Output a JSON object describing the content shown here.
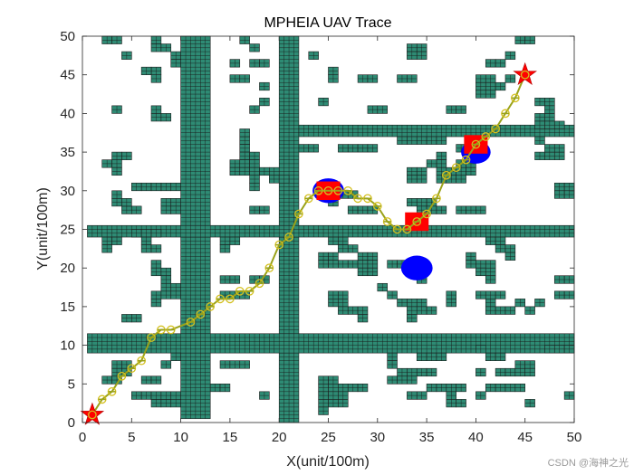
{
  "chart_data": {
    "type": "scatter",
    "title": "MPHEIA UAV Trace",
    "xlabel": "X(unit/100m)",
    "ylabel": "Y(unit/100m)",
    "xlim": [
      0,
      50
    ],
    "ylim": [
      0,
      50
    ],
    "xticks": [
      0,
      5,
      10,
      15,
      20,
      25,
      30,
      35,
      40,
      45,
      50
    ],
    "yticks": [
      0,
      5,
      10,
      15,
      20,
      25,
      30,
      35,
      40,
      45,
      50
    ],
    "grid": false,
    "colors": {
      "obstacle": "#2e8b74",
      "obstacle_edge": "#1a1a1a",
      "path": "#9aa21a",
      "waypoint": "#d4c020",
      "endpoint": "#ff0000",
      "threat_circle": "#0000ff",
      "threat_square": "#ff0000"
    },
    "obstacle_bands": [
      {
        "x": [
          10,
          13
        ],
        "y": [
          0.5,
          50
        ]
      },
      {
        "x": [
          20,
          22
        ],
        "y": [
          0,
          50
        ]
      },
      {
        "x": [
          0.5,
          50
        ],
        "y": [
          24,
          25.5
        ]
      },
      {
        "x": [
          0.5,
          50
        ],
        "y": [
          9,
          11.5
        ]
      },
      {
        "x": [
          22,
          50
        ],
        "y": [
          37,
          38.5
        ]
      }
    ],
    "obstacle_cells": [
      [
        2,
        49
      ],
      [
        3,
        49
      ],
      [
        7,
        49
      ],
      [
        7,
        48
      ],
      [
        8,
        48
      ],
      [
        4,
        47
      ],
      [
        9,
        47
      ],
      [
        9,
        46
      ],
      [
        16,
        49
      ],
      [
        17,
        48
      ],
      [
        15,
        46
      ],
      [
        17,
        46
      ],
      [
        18,
        46
      ],
      [
        23,
        47
      ],
      [
        33,
        48
      ],
      [
        34,
        48
      ],
      [
        33,
        47
      ],
      [
        34,
        47
      ],
      [
        44,
        49
      ],
      [
        45,
        49
      ],
      [
        43,
        47
      ],
      [
        41,
        46
      ],
      [
        42,
        46
      ],
      [
        7,
        44
      ],
      [
        7,
        45
      ],
      [
        6,
        45
      ],
      [
        15,
        44
      ],
      [
        16,
        44
      ],
      [
        18,
        43
      ],
      [
        28,
        44
      ],
      [
        29,
        44
      ],
      [
        25,
        44
      ],
      [
        25,
        45
      ],
      [
        32,
        44
      ],
      [
        33,
        44
      ],
      [
        40,
        44
      ],
      [
        41,
        44
      ],
      [
        40,
        43
      ],
      [
        41,
        43
      ],
      [
        42,
        43
      ],
      [
        40,
        42
      ],
      [
        41,
        42
      ],
      [
        43,
        44
      ],
      [
        3,
        40
      ],
      [
        7,
        40
      ],
      [
        7,
        39
      ],
      [
        8,
        39
      ],
      [
        17,
        40
      ],
      [
        18,
        41
      ],
      [
        24,
        41
      ],
      [
        29,
        40
      ],
      [
        30,
        40
      ],
      [
        37,
        40
      ],
      [
        38,
        40
      ],
      [
        46,
        41
      ],
      [
        47,
        41
      ],
      [
        47,
        40
      ],
      [
        46,
        39
      ],
      [
        47,
        39
      ],
      [
        46,
        38
      ],
      [
        47,
        38
      ],
      [
        48,
        38
      ],
      [
        16,
        36
      ],
      [
        16,
        37
      ],
      [
        16,
        35
      ],
      [
        16,
        34
      ],
      [
        17,
        34
      ],
      [
        15,
        33
      ],
      [
        16,
        33
      ],
      [
        17,
        33
      ],
      [
        15,
        32
      ],
      [
        16,
        32
      ],
      [
        17,
        32
      ],
      [
        2,
        33
      ],
      [
        3,
        33
      ],
      [
        3,
        32
      ],
      [
        3,
        34
      ],
      [
        4,
        34
      ],
      [
        18,
        32
      ],
      [
        19,
        32
      ],
      [
        19,
        31
      ],
      [
        20,
        31
      ],
      [
        17,
        30
      ],
      [
        17,
        31
      ],
      [
        22,
        35
      ],
      [
        23,
        35
      ],
      [
        26,
        35
      ],
      [
        27,
        35
      ],
      [
        28,
        35
      ],
      [
        29,
        35
      ],
      [
        32,
        36
      ],
      [
        33,
        36
      ],
      [
        34,
        36
      ],
      [
        35,
        36
      ],
      [
        36,
        36
      ],
      [
        38,
        35
      ],
      [
        39,
        35
      ],
      [
        39,
        34
      ],
      [
        46,
        34
      ],
      [
        47,
        34
      ],
      [
        48,
        34
      ],
      [
        47,
        35
      ],
      [
        48,
        35
      ],
      [
        46,
        36
      ],
      [
        36,
        34
      ],
      [
        36,
        33
      ],
      [
        35,
        33
      ],
      [
        36,
        32
      ],
      [
        37,
        32
      ],
      [
        33,
        32
      ],
      [
        34,
        32
      ],
      [
        33,
        31
      ],
      [
        34,
        31
      ],
      [
        36,
        31
      ],
      [
        37,
        31
      ],
      [
        38,
        31
      ],
      [
        38,
        32
      ],
      [
        38,
        33
      ],
      [
        39,
        33
      ],
      [
        39,
        32
      ],
      [
        3,
        29
      ],
      [
        3,
        28
      ],
      [
        4,
        27
      ],
      [
        5,
        27
      ],
      [
        4,
        28
      ],
      [
        8,
        30
      ],
      [
        9,
        30
      ],
      [
        5,
        30
      ],
      [
        6,
        30
      ],
      [
        7,
        30
      ],
      [
        8,
        28
      ],
      [
        9,
        28
      ],
      [
        8,
        27
      ],
      [
        9,
        27
      ],
      [
        17,
        27
      ],
      [
        18,
        27
      ],
      [
        26,
        29
      ],
      [
        27,
        29
      ],
      [
        25,
        28
      ],
      [
        27,
        27
      ],
      [
        28,
        27
      ],
      [
        29,
        27
      ],
      [
        33,
        28
      ],
      [
        34,
        28
      ],
      [
        35,
        28
      ],
      [
        34,
        27
      ],
      [
        35,
        27
      ],
      [
        36,
        27
      ],
      [
        38,
        27
      ],
      [
        39,
        27
      ],
      [
        40,
        27
      ],
      [
        48,
        30
      ],
      [
        49,
        30
      ],
      [
        48,
        29
      ],
      [
        49,
        29
      ],
      [
        5,
        24
      ],
      [
        6,
        24
      ],
      [
        7,
        24
      ],
      [
        2,
        23
      ],
      [
        3,
        23
      ],
      [
        2,
        22
      ],
      [
        6,
        22
      ],
      [
        7,
        22
      ],
      [
        6,
        23
      ],
      [
        14,
        23
      ],
      [
        15,
        23
      ],
      [
        14,
        22
      ],
      [
        25,
        23
      ],
      [
        26,
        23
      ],
      [
        26,
        22
      ],
      [
        27,
        22
      ],
      [
        41,
        23
      ],
      [
        42,
        23
      ],
      [
        42,
        22
      ],
      [
        43,
        22
      ],
      [
        43,
        21
      ],
      [
        24,
        21
      ],
      [
        25,
        21
      ],
      [
        24,
        20
      ],
      [
        25,
        20
      ],
      [
        26,
        20
      ],
      [
        27,
        20
      ],
      [
        28,
        21
      ],
      [
        29,
        21
      ],
      [
        28,
        20
      ],
      [
        29,
        20
      ],
      [
        28,
        19
      ],
      [
        29,
        19
      ],
      [
        31,
        20
      ],
      [
        32,
        20
      ],
      [
        33,
        20
      ],
      [
        34,
        19
      ],
      [
        34,
        18
      ],
      [
        39,
        21
      ],
      [
        39,
        20
      ],
      [
        40,
        20
      ],
      [
        40,
        19
      ],
      [
        41,
        19
      ],
      [
        41,
        20
      ],
      [
        41,
        18
      ],
      [
        48,
        18
      ],
      [
        49,
        18
      ],
      [
        7,
        20
      ],
      [
        7,
        19
      ],
      [
        8,
        19
      ],
      [
        8,
        18
      ],
      [
        8,
        17
      ],
      [
        9,
        17
      ],
      [
        7,
        16
      ],
      [
        8,
        16
      ],
      [
        9,
        16
      ],
      [
        7,
        15
      ],
      [
        14,
        18
      ],
      [
        15,
        18
      ],
      [
        17,
        18
      ],
      [
        18,
        18
      ],
      [
        14,
        16
      ],
      [
        15,
        16
      ],
      [
        16,
        16
      ],
      [
        25,
        16
      ],
      [
        26,
        16
      ],
      [
        25,
        15
      ],
      [
        26,
        15
      ],
      [
        26,
        14
      ],
      [
        27,
        14
      ],
      [
        28,
        14
      ],
      [
        28,
        13
      ],
      [
        30,
        17
      ],
      [
        31,
        16
      ],
      [
        32,
        15
      ],
      [
        33,
        15
      ],
      [
        34,
        15
      ],
      [
        33,
        14
      ],
      [
        34,
        14
      ],
      [
        35,
        14
      ],
      [
        37,
        16
      ],
      [
        37,
        15
      ],
      [
        40,
        16
      ],
      [
        41,
        16
      ],
      [
        42,
        16
      ],
      [
        41,
        15
      ],
      [
        44,
        15
      ],
      [
        45,
        14
      ],
      [
        46,
        15
      ],
      [
        41,
        14
      ],
      [
        42,
        14
      ],
      [
        43,
        14
      ],
      [
        48,
        16
      ],
      [
        49,
        16
      ],
      [
        33,
        13
      ],
      [
        4,
        13
      ],
      [
        5,
        13
      ],
      [
        3,
        7
      ],
      [
        4,
        7
      ],
      [
        3,
        6
      ],
      [
        4,
        6
      ],
      [
        8,
        7
      ],
      [
        9,
        8
      ],
      [
        14,
        7
      ],
      [
        15,
        7
      ],
      [
        16,
        7
      ],
      [
        2,
        5
      ],
      [
        3,
        5
      ],
      [
        6,
        5
      ],
      [
        7,
        5
      ],
      [
        5,
        3
      ],
      [
        6,
        3
      ],
      [
        7,
        2
      ],
      [
        8,
        2
      ],
      [
        7,
        3
      ],
      [
        8,
        3
      ],
      [
        9,
        3
      ],
      [
        9,
        2
      ],
      [
        13,
        4
      ],
      [
        14,
        4
      ],
      [
        18,
        3
      ],
      [
        24,
        5
      ],
      [
        25,
        5
      ],
      [
        24,
        4
      ],
      [
        25,
        4
      ],
      [
        26,
        4
      ],
      [
        27,
        4
      ],
      [
        28,
        4
      ],
      [
        24,
        3
      ],
      [
        25,
        3
      ],
      [
        26,
        3
      ],
      [
        24,
        2
      ],
      [
        25,
        2
      ],
      [
        26,
        2
      ],
      [
        24,
        1
      ],
      [
        31,
        8
      ],
      [
        31,
        7
      ],
      [
        32,
        6
      ],
      [
        33,
        6
      ],
      [
        34,
        6
      ],
      [
        35,
        6
      ],
      [
        31,
        5
      ],
      [
        32,
        5
      ],
      [
        33,
        5
      ],
      [
        35,
        4
      ],
      [
        36,
        4
      ],
      [
        37,
        4
      ],
      [
        38,
        4
      ],
      [
        37,
        3
      ],
      [
        34,
        8
      ],
      [
        35,
        8
      ],
      [
        36,
        8
      ],
      [
        40,
        9
      ],
      [
        41,
        8
      ],
      [
        42,
        8
      ],
      [
        40,
        6
      ],
      [
        42,
        6
      ],
      [
        43,
        6
      ],
      [
        44,
        6
      ],
      [
        44,
        7
      ],
      [
        45,
        7
      ],
      [
        45,
        6
      ],
      [
        41,
        4
      ],
      [
        42,
        4
      ],
      [
        43,
        4
      ],
      [
        44,
        4
      ],
      [
        33,
        3
      ],
      [
        34,
        3
      ],
      [
        40,
        3
      ],
      [
        45,
        2
      ],
      [
        37,
        2
      ],
      [
        38,
        2
      ],
      [
        49,
        3
      ],
      [
        47,
        9
      ],
      [
        48,
        9
      ],
      [
        49,
        9
      ]
    ],
    "threats": [
      {
        "shape": "circle",
        "x": 25,
        "y": 30,
        "r": 1.6
      },
      {
        "shape": "circle",
        "x": 40,
        "y": 35,
        "r": 1.5
      },
      {
        "shape": "circle",
        "x": 34,
        "y": 20,
        "r": 1.6
      },
      {
        "shape": "square",
        "x": 25,
        "y": 30,
        "size": 2.4
      },
      {
        "shape": "square",
        "x": 40,
        "y": 36,
        "size": 2.4
      },
      {
        "shape": "square",
        "x": 34,
        "y": 26,
        "size": 2.4
      }
    ],
    "series": [
      {
        "x": [
          1,
          2,
          3,
          4,
          5,
          6,
          7,
          8,
          9,
          11,
          12,
          13,
          14,
          15,
          16,
          17,
          18,
          19,
          20,
          21,
          22,
          23,
          24,
          25,
          26,
          27,
          28,
          29,
          30,
          31,
          32,
          33,
          34,
          35,
          36,
          37,
          38,
          39,
          40,
          41,
          42,
          43,
          44,
          45
        ],
        "y": [
          1,
          3,
          4,
          6,
          7,
          8,
          11,
          12,
          12,
          13,
          14,
          15,
          16,
          16,
          17,
          17,
          18,
          20,
          23,
          24,
          27,
          29,
          30,
          30,
          30,
          30,
          29,
          29,
          28,
          26,
          25,
          25,
          26,
          27,
          29,
          32,
          33,
          34,
          36,
          37,
          38,
          40,
          42,
          45
        ]
      }
    ],
    "start": {
      "x": 1,
      "y": 1
    },
    "goal": {
      "x": 45,
      "y": 45
    }
  },
  "watermark": "CSDN @海神之光"
}
